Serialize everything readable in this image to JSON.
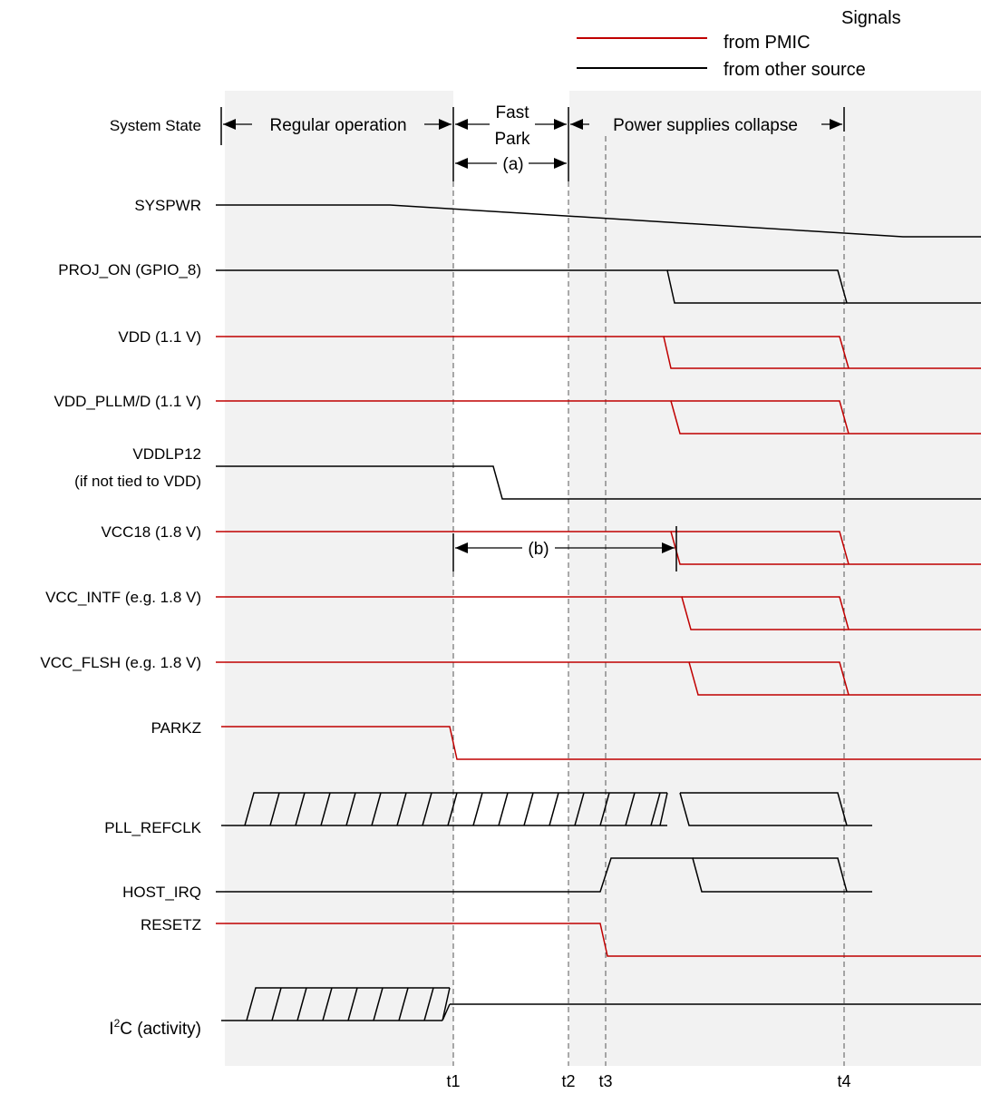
{
  "legend": {
    "title": "Signals",
    "items": [
      {
        "label": "from PMIC",
        "color": "#c00000"
      },
      {
        "label": "from other source",
        "color": "#000000"
      }
    ]
  },
  "system_state": {
    "label": "System State",
    "phases": {
      "regular": "Regular operation",
      "fast_park_line1": "Fast",
      "fast_park_line2": "Park",
      "collapse": "Power supplies collapse",
      "a": "(a)",
      "b": "(b)"
    }
  },
  "signals": {
    "syspwr": "SYSPWR",
    "proj_on": "PROJ_ON (GPIO_8)",
    "vdd": "VDD (1.1 V)",
    "vdd_pllm": "VDD_PLLM/D (1.1 V)",
    "vddlp12_line1": "VDDLP12",
    "vddlp12_line2": "(if not tied to VDD)",
    "vcc18": "VCC18 (1.8 V)",
    "vcc_intf": "VCC_INTF (e.g. 1.8 V)",
    "vcc_flsh": "VCC_FLSH (e.g. 1.8 V)",
    "parkz": "PARKZ",
    "pll_refclk": "PLL_REFCLK",
    "host_irq": "HOST_IRQ",
    "resetz": "RESETZ",
    "i2c_pre": "I",
    "i2c_sup": "2",
    "i2c_post": "C (activity)"
  },
  "times": {
    "t1": "t1",
    "t2": "t2",
    "t3": "t3",
    "t4": "t4"
  },
  "colors": {
    "pmic": "#c00000",
    "other": "#000000",
    "shade": "#f2f2f2"
  }
}
